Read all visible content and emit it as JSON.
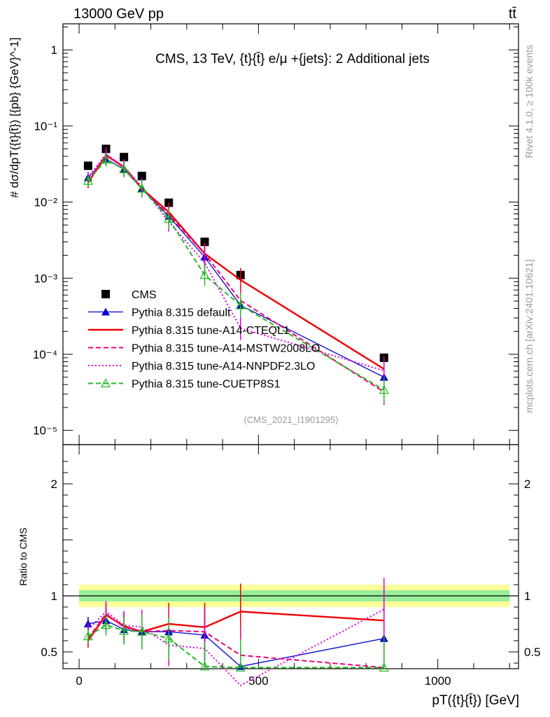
{
  "header": {
    "left": "13000 GeV pp",
    "right": "tt̄"
  },
  "side_texts": {
    "rivet": "Rivet 4.1.0, ≥ 100k events",
    "mcplots": "mcplots.cern.ch [arXiv:2401.10621]"
  },
  "chart_data": [
    {
      "type": "line",
      "panel": "main",
      "title": "CMS, 13 TeV, {t}{t̄} e/μ +{jets}: 2 Additional jets",
      "analysis_label": "(CMS_2021_I1901295)",
      "ylabel": "# dσ/dpT({t}{t̄}) [{pb} {GeV}^-1]",
      "yscale": "log",
      "ylim": [
        6.5e-06,
        2.2
      ],
      "xlim": [
        -45,
        1225
      ],
      "ytick_labels": [
        "10⁻⁵",
        "10⁻⁴",
        "10⁻³",
        "10⁻²",
        "10⁻¹",
        "1"
      ],
      "x": [
        25,
        75,
        125,
        175,
        250,
        350,
        450,
        850
      ],
      "series": [
        {
          "name": "CMS",
          "color": "#000000",
          "marker": "square",
          "line": "none",
          "values": [
            0.03,
            0.05,
            0.039,
            0.022,
            0.0098,
            0.003,
            0.0011,
            9e-05
          ]
        },
        {
          "name": "Pythia 8.315 default",
          "color": "#0000cc",
          "marker": "triangle-filled",
          "line": "solid",
          "values": [
            0.021,
            0.037,
            0.027,
            0.015,
            0.0065,
            0.0019,
            0.00044,
            5e-05
          ]
        },
        {
          "name": "Pythia 8.315 tune-A14-CTEQL1",
          "color": "#ee0000",
          "marker": "none",
          "line": "solid-thick",
          "values": [
            0.018,
            0.041,
            0.029,
            0.015,
            0.0074,
            0.0021,
            0.00095,
            6.4e-05
          ]
        },
        {
          "name": "Pythia 8.315 tune-A14-MSTW2008LO",
          "color": "#ee0077",
          "marker": "none",
          "line": "dashed",
          "values": [
            0.019,
            0.042,
            0.028,
            0.015,
            0.0068,
            0.0021,
            0.00051,
            3.2e-05
          ]
        },
        {
          "name": "Pythia 8.315 tune-A14-NNPDF2.3LO",
          "color": "#dd00dd",
          "marker": "none",
          "line": "dotted",
          "values": [
            0.021,
            0.043,
            0.029,
            0.016,
            0.0055,
            0.0016,
            0.00022,
            6.1e-05
          ]
        },
        {
          "name": "Pythia 8.315 tune-CUETP8S1",
          "color": "#22bb22",
          "marker": "triangle-open",
          "line": "dashed",
          "values": [
            0.019,
            0.036,
            0.027,
            0.015,
            0.006,
            0.0011,
            0.00044,
            3.4e-05
          ]
        }
      ]
    },
    {
      "type": "line",
      "panel": "ratio",
      "ylabel": "Ratio to CMS",
      "xlabel": "pT({t}{t̄}) [GeV]",
      "ylim": [
        0.35,
        2.35
      ],
      "xlim": [
        -45,
        1225
      ],
      "xtick_labels": [
        "0",
        "500",
        "1000"
      ],
      "ytick_labels": [
        "0.5",
        "1",
        "2"
      ],
      "x": [
        25,
        75,
        125,
        175,
        250,
        350,
        450,
        850
      ],
      "band_inner": [
        0.95,
        1.05
      ],
      "band_outer": [
        0.9,
        1.1
      ],
      "series": [
        {
          "name": "Pythia 8.315 default",
          "color": "#0000cc",
          "values": [
            0.75,
            0.78,
            0.7,
            0.68,
            0.68,
            0.65,
            0.37,
            0.62
          ]
        },
        {
          "name": "Pythia 8.315 tune-A14-CTEQL1",
          "color": "#ee0000",
          "values": [
            0.6,
            0.83,
            0.73,
            0.68,
            0.75,
            0.72,
            0.86,
            0.78
          ]
        },
        {
          "name": "Pythia 8.315 tune-A14-MSTW2008LO",
          "color": "#ee0077",
          "values": [
            0.62,
            0.84,
            0.72,
            0.68,
            0.69,
            0.68,
            0.47,
            0.36
          ]
        },
        {
          "name": "Pythia 8.315 tune-A14-NNPDF2.3LO",
          "color": "#dd00dd",
          "values": [
            0.7,
            0.86,
            0.74,
            0.72,
            0.56,
            0.53,
            0.2,
            0.88
          ]
        },
        {
          "name": "Pythia 8.315 tune-CUETP8S1",
          "color": "#22bb22",
          "values": [
            0.64,
            0.74,
            0.69,
            0.68,
            0.62,
            0.37,
            0.36,
            0.36
          ]
        }
      ]
    }
  ]
}
